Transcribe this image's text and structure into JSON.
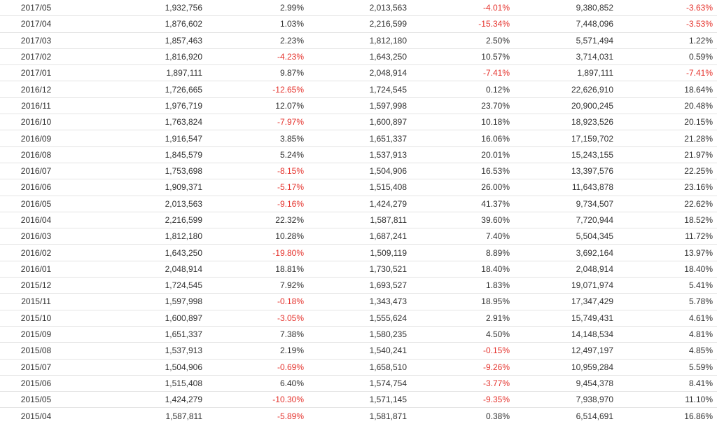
{
  "colors": {
    "text": "#333333",
    "negative": "#e5332d",
    "row_border": "#e4e4e4"
  },
  "rows": [
    [
      "2017/05",
      "1,932,756",
      "2.99%",
      "2,013,563",
      "-4.01%",
      "9,380,852",
      "-3.63%"
    ],
    [
      "2017/04",
      "1,876,602",
      "1.03%",
      "2,216,599",
      "-15.34%",
      "7,448,096",
      "-3.53%"
    ],
    [
      "2017/03",
      "1,857,463",
      "2.23%",
      "1,812,180",
      "2.50%",
      "5,571,494",
      "1.22%"
    ],
    [
      "2017/02",
      "1,816,920",
      "-4.23%",
      "1,643,250",
      "10.57%",
      "3,714,031",
      "0.59%"
    ],
    [
      "2017/01",
      "1,897,111",
      "9.87%",
      "2,048,914",
      "-7.41%",
      "1,897,111",
      "-7.41%"
    ],
    [
      "2016/12",
      "1,726,665",
      "-12.65%",
      "1,724,545",
      "0.12%",
      "22,626,910",
      "18.64%"
    ],
    [
      "2016/11",
      "1,976,719",
      "12.07%",
      "1,597,998",
      "23.70%",
      "20,900,245",
      "20.48%"
    ],
    [
      "2016/10",
      "1,763,824",
      "-7.97%",
      "1,600,897",
      "10.18%",
      "18,923,526",
      "20.15%"
    ],
    [
      "2016/09",
      "1,916,547",
      "3.85%",
      "1,651,337",
      "16.06%",
      "17,159,702",
      "21.28%"
    ],
    [
      "2016/08",
      "1,845,579",
      "5.24%",
      "1,537,913",
      "20.01%",
      "15,243,155",
      "21.97%"
    ],
    [
      "2016/07",
      "1,753,698",
      "-8.15%",
      "1,504,906",
      "16.53%",
      "13,397,576",
      "22.25%"
    ],
    [
      "2016/06",
      "1,909,371",
      "-5.17%",
      "1,515,408",
      "26.00%",
      "11,643,878",
      "23.16%"
    ],
    [
      "2016/05",
      "2,013,563",
      "-9.16%",
      "1,424,279",
      "41.37%",
      "9,734,507",
      "22.62%"
    ],
    [
      "2016/04",
      "2,216,599",
      "22.32%",
      "1,587,811",
      "39.60%",
      "7,720,944",
      "18.52%"
    ],
    [
      "2016/03",
      "1,812,180",
      "10.28%",
      "1,687,241",
      "7.40%",
      "5,504,345",
      "11.72%"
    ],
    [
      "2016/02",
      "1,643,250",
      "-19.80%",
      "1,509,119",
      "8.89%",
      "3,692,164",
      "13.97%"
    ],
    [
      "2016/01",
      "2,048,914",
      "18.81%",
      "1,730,521",
      "18.40%",
      "2,048,914",
      "18.40%"
    ],
    [
      "2015/12",
      "1,724,545",
      "7.92%",
      "1,693,527",
      "1.83%",
      "19,071,974",
      "5.41%"
    ],
    [
      "2015/11",
      "1,597,998",
      "-0.18%",
      "1,343,473",
      "18.95%",
      "17,347,429",
      "5.78%"
    ],
    [
      "2015/10",
      "1,600,897",
      "-3.05%",
      "1,555,624",
      "2.91%",
      "15,749,431",
      "4.61%"
    ],
    [
      "2015/09",
      "1,651,337",
      "7.38%",
      "1,580,235",
      "4.50%",
      "14,148,534",
      "4.81%"
    ],
    [
      "2015/08",
      "1,537,913",
      "2.19%",
      "1,540,241",
      "-0.15%",
      "12,497,197",
      "4.85%"
    ],
    [
      "2015/07",
      "1,504,906",
      "-0.69%",
      "1,658,510",
      "-9.26%",
      "10,959,284",
      "5.59%"
    ],
    [
      "2015/06",
      "1,515,408",
      "6.40%",
      "1,574,754",
      "-3.77%",
      "9,454,378",
      "8.41%"
    ],
    [
      "2015/05",
      "1,424,279",
      "-10.30%",
      "1,571,145",
      "-9.35%",
      "7,938,970",
      "11.10%"
    ],
    [
      "2015/04",
      "1,587,811",
      "-5.89%",
      "1,581,871",
      "0.38%",
      "6,514,691",
      "16.86%"
    ]
  ]
}
